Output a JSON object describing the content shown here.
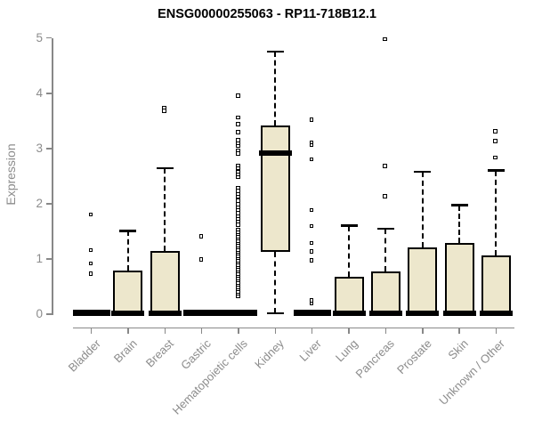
{
  "chart_data": {
    "type": "box",
    "title": "ENSG00000255063 - RP11-718B12.1",
    "ylabel": "Expression",
    "xlabel": "",
    "ylim": [
      0,
      5
    ],
    "yticks": [
      0,
      1,
      2,
      3,
      4,
      5
    ],
    "grid": false,
    "legend": "none",
    "box_fill_color": "#ede7cc",
    "box_line_color": "#000000",
    "axis_color": "#888888",
    "label_color": "#8c8c8c",
    "categories": [
      "Bladder",
      "Brain",
      "Breast",
      "Gastric",
      "Hematopoietic cells",
      "Kidney",
      "Liver",
      "Lung",
      "Pancreas",
      "Prostate",
      "Skin",
      "Unknown / Other"
    ],
    "series": [
      {
        "category": "Bladder",
        "q1": 0,
        "median": 0.02,
        "q3": 0.03,
        "whisker_low": 0,
        "whisker_high": 0.03,
        "outliers": [
          0.72,
          0.91,
          1.15,
          1.79
        ]
      },
      {
        "category": "Brain",
        "q1": 0,
        "median": 0.02,
        "q3": 0.79,
        "whisker_low": 0,
        "whisker_high": 1.51,
        "outliers": []
      },
      {
        "category": "Breast",
        "q1": 0,
        "median": 0.02,
        "q3": 1.15,
        "whisker_low": 0,
        "whisker_high": 2.64,
        "outliers": [
          3.67,
          3.73
        ]
      },
      {
        "category": "Gastric",
        "q1": 0,
        "median": 0.02,
        "q3": 0.03,
        "whisker_low": 0,
        "whisker_high": 0.03,
        "outliers": [
          0.98,
          1.4
        ]
      },
      {
        "category": "Hematopoietic cells",
        "q1": 0,
        "median": 0.02,
        "q3": 0.03,
        "whisker_low": 0,
        "whisker_high": 0.03,
        "outliers": [
          0.32,
          0.36,
          0.4,
          0.44,
          0.48,
          0.52,
          0.56,
          0.6,
          0.64,
          0.68,
          0.72,
          0.76,
          0.8,
          0.84,
          0.88,
          0.92,
          0.96,
          1.0,
          1.04,
          1.08,
          1.12,
          1.16,
          1.2,
          1.24,
          1.28,
          1.32,
          1.36,
          1.4,
          1.44,
          1.48,
          1.52,
          1.61,
          1.66,
          1.71,
          1.77,
          1.82,
          1.87,
          1.93,
          1.98,
          2.04,
          2.12,
          2.17,
          2.22,
          2.28,
          2.47,
          2.52,
          2.57,
          2.63,
          2.68,
          2.9,
          2.95,
          3.03,
          3.08,
          3.14,
          3.28,
          3.43,
          3.55,
          3.94
        ]
      },
      {
        "category": "Kidney",
        "q1": 1.13,
        "median": 2.91,
        "q3": 3.42,
        "whisker_low": 0.02,
        "whisker_high": 4.75,
        "outliers": []
      },
      {
        "category": "Liver",
        "q1": 0,
        "median": 0.02,
        "q3": 0.03,
        "whisker_low": 0,
        "whisker_high": 0.03,
        "outliers": [
          0.18,
          0.24,
          0.96,
          1.12,
          1.28,
          1.58,
          1.87,
          2.79,
          3.05,
          3.1,
          3.51
        ]
      },
      {
        "category": "Lung",
        "q1": 0,
        "median": 0.02,
        "q3": 0.67,
        "whisker_low": 0,
        "whisker_high": 1.6,
        "outliers": []
      },
      {
        "category": "Pancreas",
        "q1": 0,
        "median": 0.02,
        "q3": 0.77,
        "whisker_low": 0,
        "whisker_high": 1.55,
        "outliers": [
          2.12,
          2.67,
          4.97
        ]
      },
      {
        "category": "Prostate",
        "q1": 0,
        "median": 0.02,
        "q3": 1.21,
        "whisker_low": 0,
        "whisker_high": 2.58,
        "outliers": []
      },
      {
        "category": "Skin",
        "q1": 0,
        "median": 0.02,
        "q3": 1.29,
        "whisker_low": 0,
        "whisker_high": 1.97,
        "outliers": []
      },
      {
        "category": "Unknown / Other",
        "q1": 0,
        "median": 0.02,
        "q3": 1.06,
        "whisker_low": 0,
        "whisker_high": 2.6,
        "outliers": [
          2.82,
          3.12,
          3.3
        ]
      }
    ]
  }
}
